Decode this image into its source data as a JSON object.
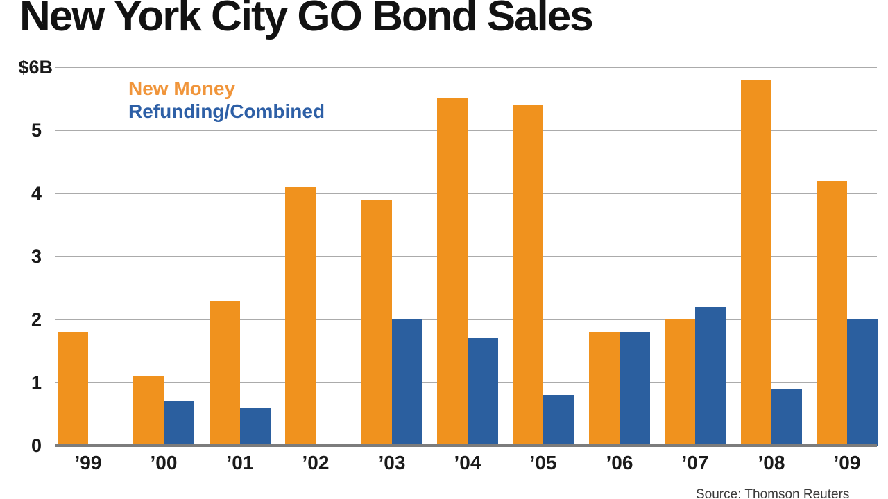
{
  "title": "New York City GO Bond Sales",
  "legend": {
    "new_money_label": "New Money",
    "refunding_label": "Refunding/Combined",
    "new_money_color": "#F0953B",
    "refunding_color": "#2D5FA6"
  },
  "source_note": "Source: Thomson Reuters",
  "colors": {
    "new_money_bar": "#F0921E",
    "refunding_bar": "#2B5F9F",
    "gridline": "#ABABAB",
    "axis_line": "#7C7C7C",
    "title_text": "#121212"
  },
  "chart_data": {
    "type": "bar",
    "title": "New York City GO Bond Sales",
    "categories": [
      "’99",
      "’00",
      "’01",
      "’02",
      "’03",
      "’04",
      "’05",
      "’06",
      "’07",
      "’08",
      "’09"
    ],
    "series": [
      {
        "name": "New Money",
        "color": "#F0921E",
        "values": [
          1.8,
          1.1,
          2.3,
          4.1,
          3.9,
          5.5,
          5.4,
          1.8,
          2.0,
          5.8,
          4.2
        ]
      },
      {
        "name": "Refunding/Combined",
        "color": "#2B5F9F",
        "values": [
          null,
          0.7,
          0.6,
          null,
          2.0,
          1.7,
          0.8,
          1.8,
          2.2,
          0.9,
          2.0
        ]
      }
    ],
    "ylabel": "",
    "xlabel": "",
    "ylim": [
      0,
      6
    ],
    "yticks": [
      {
        "label": "$6B",
        "value": 6
      },
      {
        "label": "5",
        "value": 5
      },
      {
        "label": "4",
        "value": 4
      },
      {
        "label": "3",
        "value": 3
      },
      {
        "label": "2",
        "value": 2
      },
      {
        "label": "1",
        "value": 1
      },
      {
        "label": "0",
        "value": 0
      }
    ],
    "grid": true,
    "legend_position": "top-left-inside",
    "units": "billions USD"
  }
}
